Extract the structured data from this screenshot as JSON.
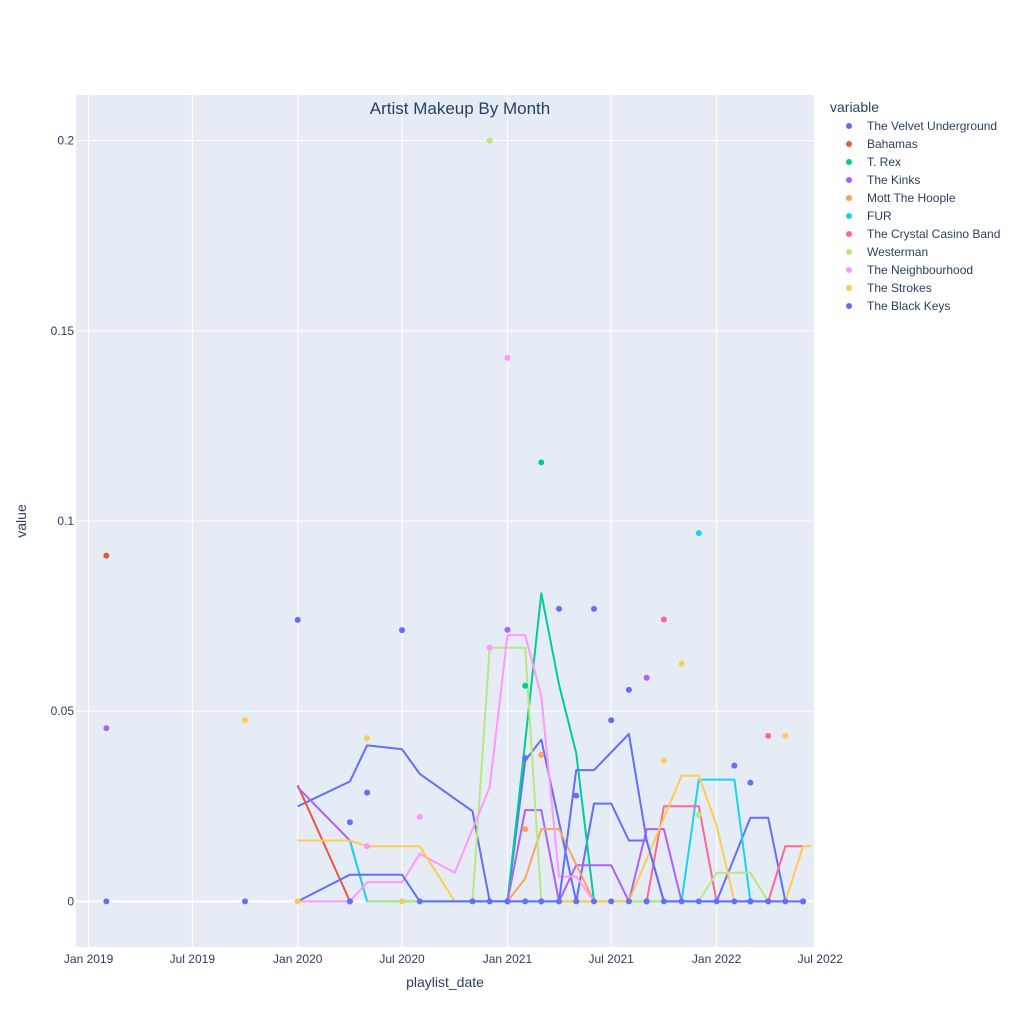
{
  "chart_data": {
    "type": "scatter",
    "title": "Artist Makeup By Month",
    "xlabel": "playlist_date",
    "ylabel": "value",
    "x_axis_type": "date",
    "xlim": [
      "2018-12-10",
      "2022-06-20"
    ],
    "ylim": [
      -0.012,
      0.212
    ],
    "x_ticks": [
      {
        "value": "2019-01-01",
        "label": "Jan 2019"
      },
      {
        "value": "2019-07-01",
        "label": "Jul 2019"
      },
      {
        "value": "2020-01-01",
        "label": "Jan 2020"
      },
      {
        "value": "2020-07-01",
        "label": "Jul 2020"
      },
      {
        "value": "2021-01-01",
        "label": "Jan 2021"
      },
      {
        "value": "2021-07-01",
        "label": "Jul 2021"
      },
      {
        "value": "2022-01-01",
        "label": "Jan 2022"
      },
      {
        "value": "2022-07-01",
        "label": "Jul 2022"
      }
    ],
    "y_ticks": [
      {
        "value": 0,
        "label": "0"
      },
      {
        "value": 0.05,
        "label": "0.05"
      },
      {
        "value": 0.1,
        "label": "0.1"
      },
      {
        "value": 0.15,
        "label": "0.15"
      },
      {
        "value": 0.2,
        "label": "0.2"
      }
    ],
    "grid": true,
    "legend_title": "variable",
    "legend_position": "right",
    "series": [
      {
        "name": "The Velvet Underground",
        "color": "#636efa",
        "points": [
          [
            "2019-02-01",
            0
          ],
          [
            "2019-10-01",
            0.0
          ],
          [
            "2020-01-01",
            0.074
          ],
          [
            "2020-04-01",
            0.0
          ],
          [
            "2020-07-01",
            0.0713
          ],
          [
            "2020-08-01",
            0.0
          ],
          [
            "2021-01-01",
            0.0
          ],
          [
            "2021-02-01",
            0.0377
          ],
          [
            "2021-03-01",
            0.0
          ],
          [
            "2021-04-01",
            0.0769
          ],
          [
            "2021-06-01",
            0.0769
          ],
          [
            "2021-07-01",
            0.0476
          ],
          [
            "2021-08-01",
            0.0556
          ],
          [
            "2021-09-01",
            0.0
          ],
          [
            "2022-02-01",
            0.0357
          ],
          [
            "2022-03-01",
            0.0
          ],
          [
            "2022-04-01",
            0.0
          ]
        ],
        "line": [
          [
            "2020-01-01",
            0.025
          ],
          [
            "2020-04-01",
            0.0315
          ],
          [
            "2020-05-01",
            0.041
          ],
          [
            "2020-07-01",
            0.04
          ],
          [
            "2020-08-01",
            0.0335
          ],
          [
            "2020-11-01",
            0.0237
          ],
          [
            "2020-12-01",
            0.0
          ],
          [
            "2021-01-01",
            0.0
          ],
          [
            "2021-02-01",
            0.037
          ],
          [
            "2021-03-01",
            0.0425
          ],
          [
            "2021-05-01",
            0.0
          ],
          [
            "2021-06-01",
            0.0257
          ],
          [
            "2021-07-01",
            0.0257
          ],
          [
            "2021-08-01",
            0.016
          ],
          [
            "2021-09-01",
            0.016
          ],
          [
            "2021-10-01",
            0.0
          ],
          [
            "2022-01-01",
            0.0
          ],
          [
            "2022-03-01",
            0.022
          ],
          [
            "2022-04-01",
            0.022
          ],
          [
            "2022-05-01",
            0.0
          ]
        ]
      },
      {
        "name": "Bahamas",
        "color": "#EF553B",
        "points": [
          [
            "2019-02-01",
            0.0909
          ]
        ],
        "line": [
          [
            "2020-01-01",
            0.0305
          ],
          [
            "2020-04-01",
            0.0
          ]
        ]
      },
      {
        "name": "T. Rex",
        "color": "#00cc96",
        "points": [
          [
            "2021-02-01",
            0.0567
          ],
          [
            "2021-03-01",
            0.1154
          ]
        ],
        "line": [
          [
            "2021-01-01",
            0.0
          ],
          [
            "2021-02-01",
            0.042
          ],
          [
            "2021-03-01",
            0.081
          ],
          [
            "2021-04-01",
            0.057
          ],
          [
            "2021-05-01",
            0.039
          ],
          [
            "2021-06-01",
            0.0
          ]
        ]
      },
      {
        "name": "The Kinks",
        "color": "#ab63fa",
        "points": [
          [
            "2019-02-01",
            0.0455
          ],
          [
            "2021-01-01",
            0.0714
          ],
          [
            "2021-09-01",
            0.0588
          ]
        ],
        "line": [
          [
            "2020-01-01",
            0.03
          ],
          [
            "2020-04-01",
            0.016
          ],
          [
            "2020-05-01",
            0.0
          ],
          [
            "2021-01-01",
            0.0
          ],
          [
            "2021-02-01",
            0.024
          ],
          [
            "2021-03-01",
            0.024
          ],
          [
            "2021-04-01",
            0.0
          ],
          [
            "2021-05-01",
            0.0095
          ],
          [
            "2021-07-01",
            0.0095
          ],
          [
            "2021-08-01",
            0.0
          ],
          [
            "2021-09-01",
            0.019
          ],
          [
            "2021-10-01",
            0.019
          ],
          [
            "2021-11-01",
            0.0
          ]
        ]
      },
      {
        "name": "Mott The Hoople",
        "color": "#FFA15A",
        "points": [
          [
            "2021-02-01",
            0.019
          ],
          [
            "2021-03-01",
            0.0385
          ]
        ],
        "line": [
          [
            "2021-01-01",
            0.0
          ],
          [
            "2021-02-01",
            0.006
          ],
          [
            "2021-03-01",
            0.019
          ],
          [
            "2021-04-01",
            0.019
          ],
          [
            "2021-06-01",
            0.0
          ]
        ]
      },
      {
        "name": "FUR",
        "color": "#19d3f3",
        "points": [
          [
            "2021-12-01",
            0.0968
          ]
        ],
        "line": [
          [
            "2020-04-01",
            0.016
          ],
          [
            "2020-05-01",
            0.0
          ],
          [
            "2021-11-01",
            0.0
          ],
          [
            "2021-12-01",
            0.032
          ],
          [
            "2022-02-01",
            0.032
          ],
          [
            "2022-03-01",
            0.0
          ]
        ]
      },
      {
        "name": "The Crystal Casino Band",
        "color": "#FF6692",
        "points": [
          [
            "2021-10-01",
            0.0741
          ],
          [
            "2022-04-01",
            0.0435
          ]
        ],
        "line": [
          [
            "2021-09-01",
            0.0
          ],
          [
            "2021-10-01",
            0.025
          ],
          [
            "2021-12-01",
            0.025
          ],
          [
            "2022-01-01",
            0.0
          ],
          [
            "2022-04-01",
            0.0
          ],
          [
            "2022-05-01",
            0.0145
          ],
          [
            "2022-06-01",
            0.0145
          ]
        ]
      },
      {
        "name": "Westerman",
        "color": "#B6E880",
        "points": [
          [
            "2020-12-01",
            0.2
          ],
          [
            "2021-12-01",
            0.0227
          ]
        ],
        "line": [
          [
            "2020-05-01",
            0.0
          ],
          [
            "2020-11-01",
            0.0
          ],
          [
            "2020-12-01",
            0.0667
          ],
          [
            "2021-02-01",
            0.0667
          ],
          [
            "2021-03-01",
            0.0
          ],
          [
            "2021-12-01",
            0.0
          ],
          [
            "2022-01-01",
            0.0075
          ],
          [
            "2022-03-01",
            0.0075
          ],
          [
            "2022-04-01",
            0.0
          ]
        ]
      },
      {
        "name": "The Neighbourhood",
        "color": "#FF97FF",
        "points": [
          [
            "2020-05-01",
            0.0145
          ],
          [
            "2020-08-01",
            0.0222
          ],
          [
            "2020-12-01",
            0.0667
          ],
          [
            "2021-01-01",
            0.1429
          ]
        ],
        "line": [
          [
            "2020-01-01",
            0.0
          ],
          [
            "2020-04-01",
            0.0
          ],
          [
            "2020-05-01",
            0.005
          ],
          [
            "2020-07-01",
            0.005
          ],
          [
            "2020-08-01",
            0.0125
          ],
          [
            "2020-10-01",
            0.0075
          ],
          [
            "2020-12-01",
            0.03
          ],
          [
            "2021-01-01",
            0.07
          ],
          [
            "2021-02-01",
            0.07
          ],
          [
            "2021-03-01",
            0.054
          ],
          [
            "2021-04-01",
            0.0065
          ],
          [
            "2021-05-01",
            0.0065
          ],
          [
            "2021-06-01",
            0.0
          ]
        ]
      },
      {
        "name": "The Strokes",
        "color": "#FECB52",
        "points": [
          [
            "2019-10-01",
            0.0476
          ],
          [
            "2020-01-01",
            0.0
          ],
          [
            "2020-05-01",
            0.0429
          ],
          [
            "2020-07-01",
            0.0
          ],
          [
            "2021-10-01",
            0.037
          ],
          [
            "2021-11-01",
            0.0625
          ],
          [
            "2022-05-01",
            0.0435
          ]
        ],
        "line": [
          [
            "2020-01-01",
            0.016
          ],
          [
            "2020-04-01",
            0.016
          ],
          [
            "2020-05-01",
            0.0145
          ],
          [
            "2020-08-01",
            0.0145
          ],
          [
            "2020-10-01",
            0.0
          ],
          [
            "2021-08-01",
            0.0
          ],
          [
            "2021-11-01",
            0.033
          ],
          [
            "2021-12-01",
            0.033
          ],
          [
            "2022-01-01",
            0.02
          ],
          [
            "2022-02-01",
            0.0
          ],
          [
            "2022-05-01",
            0.0
          ],
          [
            "2022-06-01",
            0.0145
          ],
          [
            "2022-06-15",
            0.0145
          ]
        ]
      },
      {
        "name": "The Black Keys",
        "color": "#636efa",
        "points": [
          [
            "2020-04-01",
            0.0208
          ],
          [
            "2020-05-01",
            0.0286
          ],
          [
            "2021-05-01",
            0.0278
          ],
          [
            "2022-03-01",
            0.0312
          ],
          [
            "2022-06-01",
            0.0
          ]
        ],
        "line": [
          [
            "2020-01-01",
            0.0
          ],
          [
            "2020-04-01",
            0.007
          ],
          [
            "2020-07-01",
            0.007
          ],
          [
            "2020-08-01",
            0.0
          ],
          [
            "2021-04-01",
            0.0
          ],
          [
            "2021-05-01",
            0.0345
          ],
          [
            "2021-06-01",
            0.0345
          ],
          [
            "2021-08-01",
            0.044
          ],
          [
            "2021-09-01",
            0.016
          ],
          [
            "2021-10-01",
            0.0
          ],
          [
            "2022-06-01",
            0.0
          ]
        ]
      }
    ],
    "zero_markers": [
      "2020-04-01",
      "2020-11-01",
      "2020-12-01",
      "2021-01-01",
      "2021-02-01",
      "2021-03-01",
      "2021-04-01",
      "2021-05-01",
      "2021-06-01",
      "2021-07-01",
      "2021-08-01",
      "2021-09-01",
      "2021-10-01",
      "2021-11-01",
      "2021-12-01",
      "2022-01-01",
      "2022-02-01",
      "2022-03-01",
      "2022-04-01",
      "2022-05-01",
      "2022-06-01"
    ]
  }
}
